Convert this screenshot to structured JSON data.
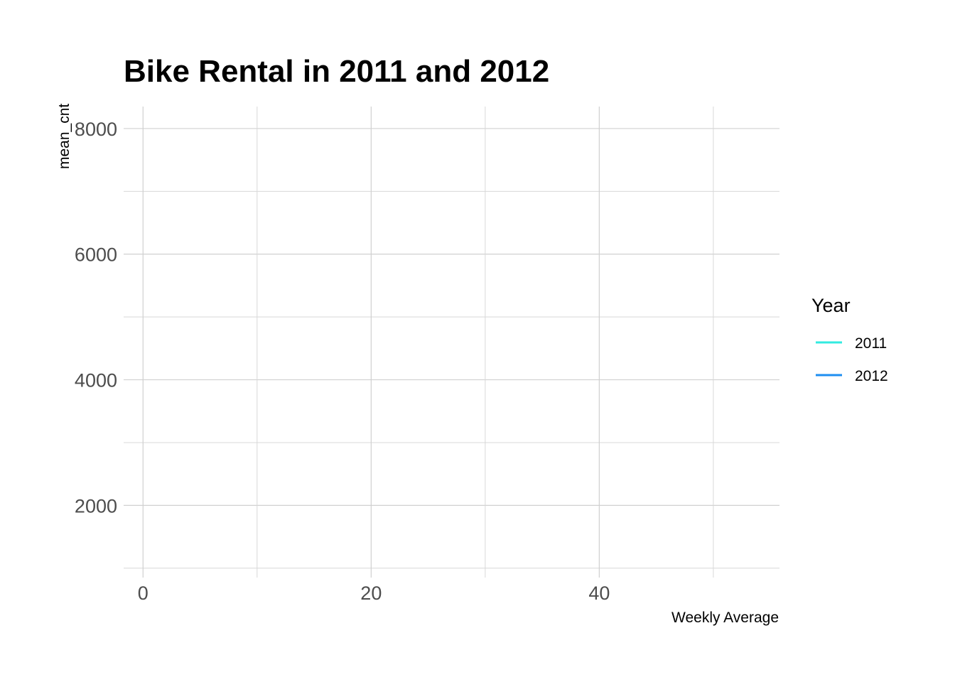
{
  "chart_data": {
    "type": "line",
    "title": "Bike Rental in 2011 and 2012",
    "xlabel": "Weekly Average",
    "ylabel": "mean_cnt",
    "xlim": [
      -1.7,
      55.8
    ],
    "ylim": [
      850,
      8350
    ],
    "x_major_ticks": [
      0,
      20,
      40
    ],
    "x_minor_ticks": [
      10,
      30,
      50
    ],
    "y_major_ticks": [
      2000,
      4000,
      6000,
      8000
    ],
    "y_minor_ticks": [
      1000,
      3000,
      5000,
      7000
    ],
    "x_tick_labels": [
      "0",
      "20",
      "40"
    ],
    "y_tick_labels": [
      "2000",
      "4000",
      "6000",
      "8000"
    ],
    "grid": true,
    "legend": {
      "title": "Year",
      "position": "right",
      "entries": [
        {
          "label": "2011",
          "color": "#33ebe0"
        },
        {
          "label": "2012",
          "color": "#1e8ef0"
        }
      ]
    },
    "series": [
      {
        "name": "2011",
        "color": "#33ebe0",
        "x": [],
        "y": []
      },
      {
        "name": "2012",
        "color": "#1e8ef0",
        "x": [],
        "y": []
      }
    ]
  }
}
